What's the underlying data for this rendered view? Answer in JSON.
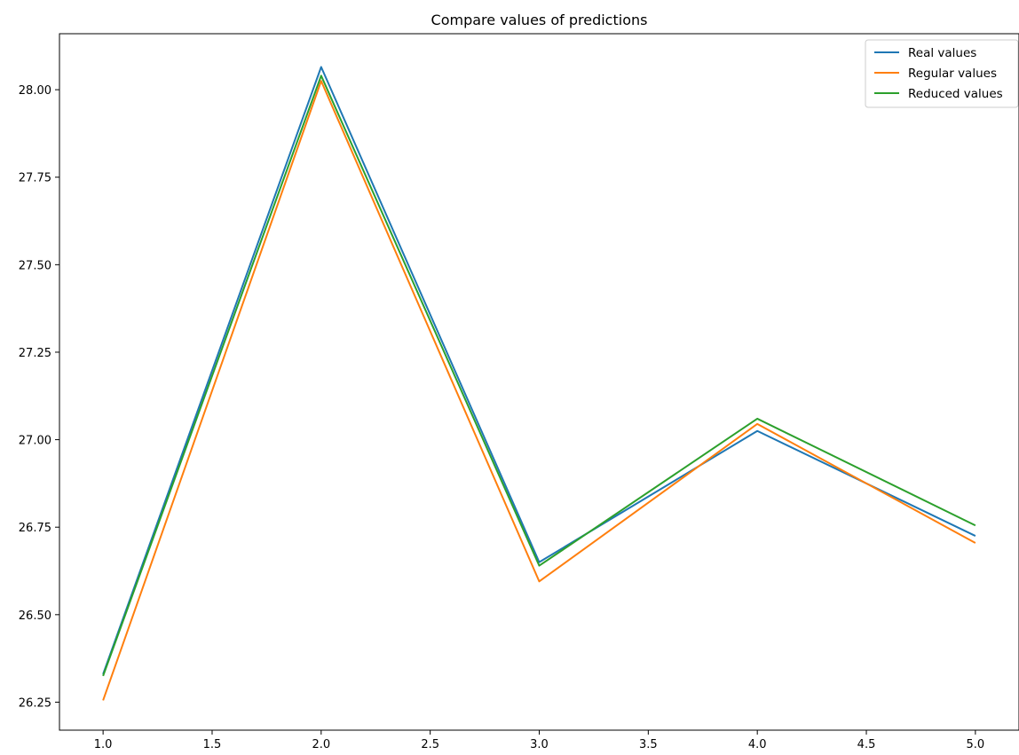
{
  "chart_data": {
    "type": "line",
    "title": "Compare values of predictions",
    "xlabel": "",
    "ylabel": "",
    "x": [
      1.0,
      2.0,
      3.0,
      4.0,
      5.0
    ],
    "xlim": [
      0.8,
      5.2
    ],
    "ylim": [
      26.17,
      28.16
    ],
    "xticks": [
      1.0,
      1.5,
      2.0,
      2.5,
      3.0,
      3.5,
      4.0,
      4.5,
      5.0
    ],
    "xtick_labels": [
      "1.0",
      "1.5",
      "2.0",
      "2.5",
      "3.0",
      "3.5",
      "4.0",
      "4.5",
      "5.0"
    ],
    "yticks": [
      26.25,
      26.5,
      26.75,
      27.0,
      27.25,
      27.5,
      27.75,
      28.0
    ],
    "ytick_labels": [
      "26.25",
      "26.50",
      "26.75",
      "27.00",
      "27.25",
      "27.50",
      "27.75",
      "28.00"
    ],
    "grid": false,
    "legend_position": "top-right",
    "series": [
      {
        "name": "Real values",
        "color": "#1f77b4",
        "values": [
          26.33,
          28.065,
          26.65,
          27.025,
          26.725
        ]
      },
      {
        "name": "Regular values",
        "color": "#ff7f0e",
        "values": [
          26.255,
          28.025,
          26.595,
          27.045,
          26.705
        ]
      },
      {
        "name": "Reduced values",
        "color": "#2ca02c",
        "values": [
          26.325,
          28.04,
          26.64,
          27.06,
          26.755
        ]
      }
    ]
  }
}
